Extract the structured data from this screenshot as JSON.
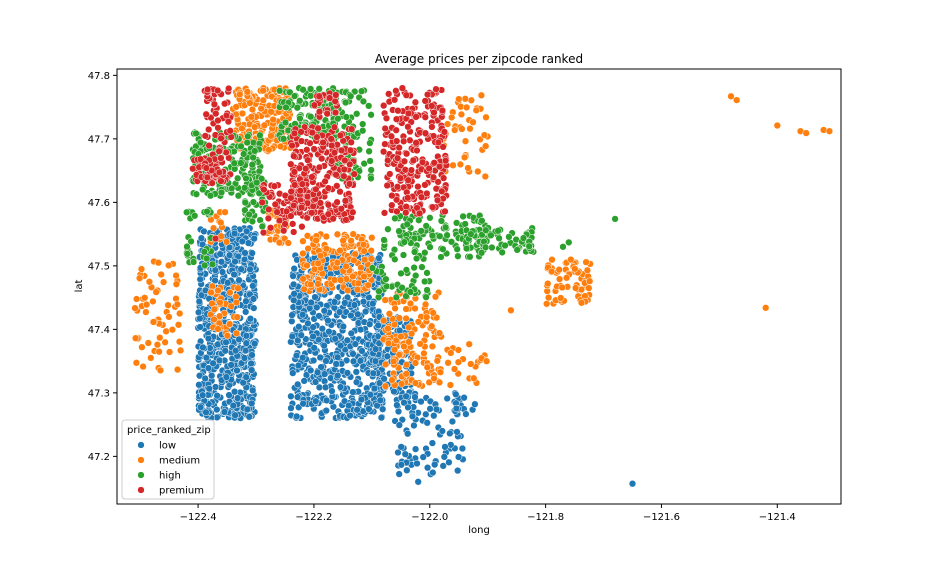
{
  "chart_data": {
    "type": "scatter",
    "title": "Average prices per zipcode ranked",
    "xlabel": "long",
    "ylabel": "lat",
    "xlim": [
      -122.54,
      -121.29
    ],
    "ylim": [
      47.125,
      47.81
    ],
    "xticks": [
      -122.4,
      -122.2,
      -122.0,
      -121.8,
      -121.6,
      -121.4
    ],
    "xtick_labels": [
      "−122.4",
      "−122.2",
      "−122.0",
      "−121.8",
      "−121.6",
      "−121.4"
    ],
    "yticks": [
      47.2,
      47.3,
      47.4,
      47.5,
      47.6,
      47.7,
      47.8
    ],
    "ytick_labels": [
      "47.2",
      "47.3",
      "47.4",
      "47.5",
      "47.6",
      "47.7",
      "47.8"
    ],
    "grid": false,
    "legend": {
      "title": "price_ranked_zip",
      "placement": "lower-left"
    },
    "series": [
      {
        "name": "low",
        "color": "#1f77b4",
        "clusters": [
          {
            "x": [
              -122.4,
              -122.3
            ],
            "y": [
              47.26,
              47.56
            ],
            "n": 650
          },
          {
            "x": [
              -122.24,
              -122.08
            ],
            "y": [
              47.26,
              47.52
            ],
            "n": 700
          },
          {
            "x": [
              -122.1,
              -122.03
            ],
            "y": [
              47.3,
              47.42
            ],
            "n": 140
          },
          {
            "x": [
              -122.06,
              -121.94
            ],
            "y": [
              47.17,
              47.3
            ],
            "n": 90
          },
          {
            "x": [
              -121.96,
              -121.92
            ],
            "y": [
              47.26,
              47.3
            ],
            "n": 12
          }
        ],
        "points": [
          {
            "x": -121.65,
            "y": 47.157
          },
          {
            "x": -122.14,
            "y": 47.28
          },
          {
            "x": -122.02,
            "y": 47.16
          }
        ]
      },
      {
        "name": "medium",
        "color": "#ff7f0e",
        "clusters": [
          {
            "x": [
              -122.34,
              -122.24
            ],
            "y": [
              47.68,
              47.78
            ],
            "n": 200
          },
          {
            "x": [
              -122.51,
              -122.43
            ],
            "y": [
              47.33,
              47.51
            ],
            "n": 60
          },
          {
            "x": [
              -122.38,
              -122.33
            ],
            "y": [
              47.39,
              47.47
            ],
            "n": 40
          },
          {
            "x": [
              -122.28,
              -122.24
            ],
            "y": [
              47.53,
              47.59
            ],
            "n": 30
          },
          {
            "x": [
              -122.38,
              -122.35
            ],
            "y": [
              47.53,
              47.59
            ],
            "n": 15
          },
          {
            "x": [
              -122.22,
              -122.1
            ],
            "y": [
              47.46,
              47.55
            ],
            "n": 160
          },
          {
            "x": [
              -122.08,
              -121.98
            ],
            "y": [
              47.31,
              47.46
            ],
            "n": 130
          },
          {
            "x": [
              -121.99,
              -121.9
            ],
            "y": [
              47.31,
              47.38
            ],
            "n": 25
          },
          {
            "x": [
              -121.98,
              -121.9
            ],
            "y": [
              47.64,
              47.77
            ],
            "n": 45
          },
          {
            "x": [
              -121.8,
              -121.72
            ],
            "y": [
              47.44,
              47.51
            ],
            "n": 70
          }
        ],
        "points": [
          {
            "x": -121.48,
            "y": 47.767
          },
          {
            "x": -121.47,
            "y": 47.761
          },
          {
            "x": -121.4,
            "y": 47.721
          },
          {
            "x": -121.36,
            "y": 47.712
          },
          {
            "x": -121.35,
            "y": 47.709
          },
          {
            "x": -121.32,
            "y": 47.714
          },
          {
            "x": -121.31,
            "y": 47.712
          },
          {
            "x": -121.42,
            "y": 47.434
          },
          {
            "x": -121.86,
            "y": 47.43
          }
        ]
      },
      {
        "name": "high",
        "color": "#2ca02c",
        "clusters": [
          {
            "x": [
              -122.41,
              -122.29
            ],
            "y": [
              47.61,
              47.71
            ],
            "n": 180
          },
          {
            "x": [
              -122.32,
              -122.28
            ],
            "y": [
              47.56,
              47.64
            ],
            "n": 40
          },
          {
            "x": [
              -122.26,
              -122.16
            ],
            "y": [
              47.7,
              47.78
            ],
            "n": 120
          },
          {
            "x": [
              -122.17,
              -122.1
            ],
            "y": [
              47.63,
              47.78
            ],
            "n": 90
          },
          {
            "x": [
              -122.08,
              -121.9
            ],
            "y": [
              47.51,
              47.58
            ],
            "n": 120
          },
          {
            "x": [
              -121.94,
              -121.82
            ],
            "y": [
              47.52,
              47.56
            ],
            "n": 60
          },
          {
            "x": [
              -122.42,
              -122.37
            ],
            "y": [
              47.5,
              47.59
            ],
            "n": 30
          },
          {
            "x": [
              -122.1,
              -122.0
            ],
            "y": [
              47.45,
              47.5
            ],
            "n": 40
          }
        ],
        "points": [
          {
            "x": -121.68,
            "y": 47.574
          },
          {
            "x": -121.76,
            "y": 47.537
          },
          {
            "x": -121.77,
            "y": 47.53
          }
        ]
      },
      {
        "name": "premium",
        "color": "#d62728",
        "clusters": [
          {
            "x": [
              -122.39,
              -122.34
            ],
            "y": [
              47.64,
              47.78
            ],
            "n": 70
          },
          {
            "x": [
              -122.41,
              -122.35
            ],
            "y": [
              47.63,
              47.67
            ],
            "n": 50
          },
          {
            "x": [
              -122.24,
              -122.13
            ],
            "y": [
              47.57,
              47.72
            ],
            "n": 260
          },
          {
            "x": [
              -122.08,
              -121.97
            ],
            "y": [
              47.58,
              47.78
            ],
            "n": 260
          },
          {
            "x": [
              -122.29,
              -122.22
            ],
            "y": [
              47.55,
              47.63
            ],
            "n": 60
          },
          {
            "x": [
              -122.2,
              -122.16
            ],
            "y": [
              47.73,
              47.78
            ],
            "n": 25
          }
        ],
        "points": [
          {
            "x": -122.37,
            "y": 47.543
          }
        ]
      }
    ]
  }
}
